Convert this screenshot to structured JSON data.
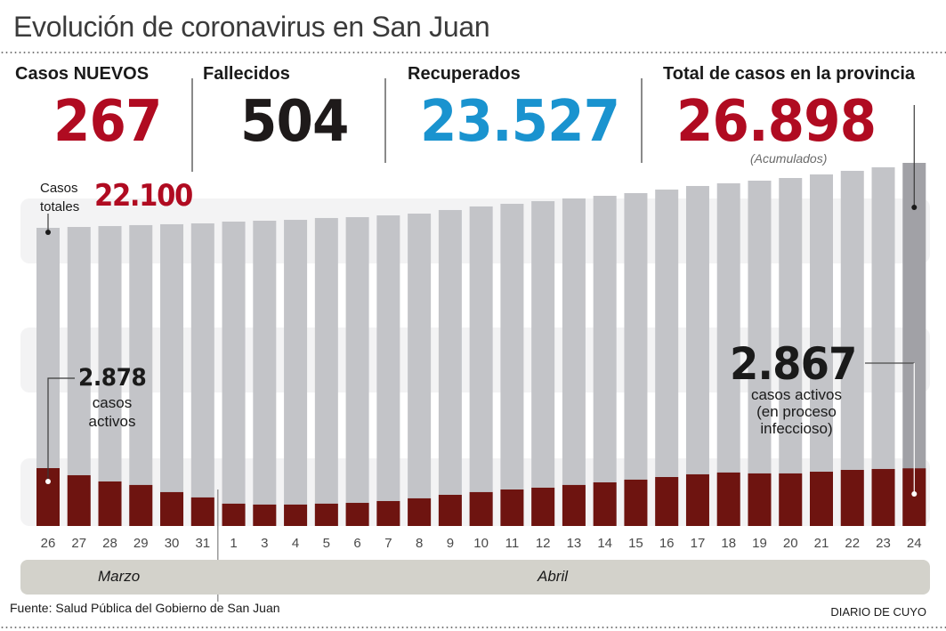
{
  "title": "Evolución de coronavirus en San Juan",
  "stats": [
    {
      "label": "Casos NUEVOS",
      "value": "267",
      "color": "#b00b21"
    },
    {
      "label": "Fallecidos",
      "value": "504",
      "color": "#1e1a1a"
    },
    {
      "label": "Recuperados",
      "value": "23.527",
      "color": "#1a93cf"
    },
    {
      "label": "Total de casos en la provincia",
      "value": "26.898",
      "color": "#b00b21",
      "note": "(Acumulados)"
    }
  ],
  "annotations": {
    "total_start_label": "Casos totales",
    "total_start_label_line1": "Casos",
    "total_start_label_line2": "totales",
    "total_start_value": "22.100",
    "active_start_value": "2.878",
    "active_start_line1": "casos",
    "active_start_line2": "activos",
    "active_end_value": "2.867",
    "active_end_line1": "casos activos",
    "active_end_line2": "(en proceso",
    "active_end_line3": "infeccioso)"
  },
  "months": [
    {
      "label": "Marzo"
    },
    {
      "label": "Abril"
    }
  ],
  "source": "Fuente: Salud Pública del Gobierno de San Juan",
  "brand": "DIARIO DE CUYO",
  "colors": {
    "total_bar": "#c3c4c8",
    "total_bar_last": "#a1a1a6",
    "active_bar": "#6e1410",
    "accent_red": "#b00b21",
    "accent_blue": "#1a93cf",
    "band": "#f3f3f4"
  },
  "chart_data": {
    "type": "bar",
    "title": "Evolución de coronavirus en San Juan",
    "xlabel": "",
    "ylabel": "",
    "categories": [
      "26",
      "27",
      "28",
      "29",
      "30",
      "31",
      "1",
      "3",
      "4",
      "5",
      "6",
      "7",
      "8",
      "9",
      "10",
      "11",
      "12",
      "13",
      "14",
      "15",
      "16",
      "17",
      "18",
      "19",
      "20",
      "21",
      "22",
      "23",
      "24"
    ],
    "category_months": [
      "Marzo",
      "Marzo",
      "Marzo",
      "Marzo",
      "Marzo",
      "Marzo",
      "Abril",
      "Abril",
      "Abril",
      "Abril",
      "Abril",
      "Abril",
      "Abril",
      "Abril",
      "Abril",
      "Abril",
      "Abril",
      "Abril",
      "Abril",
      "Abril",
      "Abril",
      "Abril",
      "Abril",
      "Abril",
      "Abril",
      "Abril",
      "Abril",
      "Abril",
      "Abril"
    ],
    "series": [
      {
        "name": "Casos totales",
        "values": [
          22100,
          22165,
          22230,
          22300,
          22365,
          22430,
          22560,
          22625,
          22690,
          22825,
          22890,
          23020,
          23150,
          23415,
          23680,
          23875,
          24070,
          24270,
          24465,
          24665,
          24925,
          25190,
          25390,
          25585,
          25780,
          26045,
          26310,
          26570,
          26898
        ]
      },
      {
        "name": "Casos activos",
        "values": [
          2878,
          2525,
          2215,
          2040,
          1685,
          1420,
          1110,
          1065,
          1065,
          1110,
          1150,
          1240,
          1375,
          1550,
          1685,
          1815,
          1905,
          2040,
          2170,
          2305,
          2435,
          2570,
          2660,
          2615,
          2615,
          2700,
          2790,
          2835,
          2867
        ]
      }
    ],
    "stacked": false,
    "overlay": true,
    "legend": "none",
    "grid": false,
    "note": "Total bars use a truncated axis; active cases overlay from a common baseline."
  }
}
